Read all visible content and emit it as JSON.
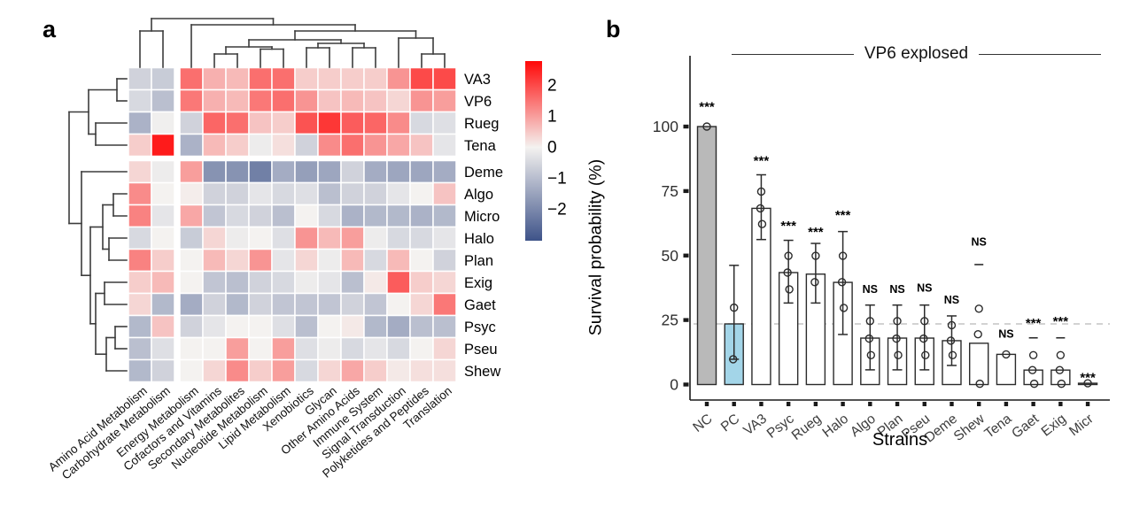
{
  "figure": {
    "panels": [
      {
        "label": "a"
      },
      {
        "label": "b"
      }
    ]
  },
  "chart_data": [
    {
      "type": "heatmap",
      "panel": "a",
      "rows": [
        "VA3",
        "VP6",
        "Rueg",
        "Tena",
        "Deme",
        "Algo",
        "Micro",
        "Halo",
        "Plan",
        "Exig",
        "Gaet",
        "Psyc",
        "Pseu",
        "Shew"
      ],
      "columns": [
        "Amino Acid Metabolism",
        "Carbohydrate Metabolism",
        "Energy Metabolism",
        "Cofactors and Vitamins",
        "Secondary Metabolites",
        "Nucleotide Metabolism",
        "Lipid Metabolism",
        "Xenobiotics",
        "Glycan",
        "Other Amino Acids",
        "Immune System",
        "Signal Transduction",
        "Polyketides and Peptides",
        "Translation"
      ],
      "values": [
        [
          -0.5,
          -0.6,
          1.4,
          0.7,
          0.6,
          1.4,
          1.4,
          0.4,
          0.4,
          0.4,
          0.4,
          1.0,
          1.8,
          1.8
        ],
        [
          -0.4,
          -0.8,
          1.3,
          0.7,
          0.6,
          1.3,
          1.4,
          1.0,
          0.5,
          0.6,
          0.5,
          0.3,
          1.0,
          0.9
        ],
        [
          -1.0,
          -0.05,
          -0.5,
          1.5,
          1.4,
          0.5,
          0.4,
          1.7,
          2.0,
          1.6,
          1.5,
          1.1,
          -0.4,
          -0.3
        ],
        [
          0.4,
          2.3,
          -1.0,
          0.6,
          0.4,
          -0.1,
          0.2,
          -0.5,
          1.1,
          1.4,
          1.0,
          0.8,
          0.5,
          -0.2
        ],
        [
          0.3,
          -0.1,
          0.9,
          -1.5,
          -1.5,
          -1.8,
          -1.1,
          -1.3,
          -1.2,
          -0.5,
          -1.1,
          -1.2,
          -1.2,
          -1.1
        ],
        [
          1.1,
          0.0,
          0.05,
          -0.5,
          -0.5,
          -0.2,
          -0.4,
          -0.3,
          -0.8,
          -0.5,
          -0.5,
          -0.2,
          0.0,
          0.5
        ],
        [
          1.2,
          -0.2,
          0.8,
          -0.7,
          -0.4,
          -0.5,
          -0.8,
          0.0,
          -0.4,
          -1.0,
          -0.9,
          -0.9,
          -1.0,
          -0.9
        ],
        [
          -0.4,
          0.0,
          -0.6,
          0.3,
          -0.1,
          0.0,
          -0.3,
          1.0,
          0.6,
          0.9,
          -0.1,
          -0.4,
          -0.4,
          -0.2
        ],
        [
          1.2,
          0.4,
          0.0,
          0.6,
          0.3,
          1.0,
          -0.2,
          0.3,
          -0.1,
          0.6,
          -0.4,
          0.6,
          0.0,
          -0.5
        ],
        [
          0.4,
          0.6,
          0.0,
          -0.7,
          -0.8,
          -0.5,
          -0.4,
          -0.1,
          -0.2,
          -0.8,
          0.1,
          1.6,
          0.4,
          0.3
        ],
        [
          0.3,
          -0.9,
          -1.1,
          -0.5,
          -0.9,
          -0.5,
          -0.7,
          -0.7,
          -0.7,
          -0.5,
          -0.7,
          0.0,
          0.3,
          1.3
        ],
        [
          -0.9,
          0.5,
          -0.5,
          -0.2,
          0.0,
          0.0,
          -0.3,
          -0.8,
          0.0,
          0.1,
          -0.9,
          -1.1,
          -0.8,
          -0.8
        ],
        [
          -0.8,
          -0.3,
          0.0,
          0.0,
          0.9,
          0.0,
          0.9,
          -0.3,
          -0.1,
          -0.4,
          -0.2,
          -0.4,
          0.0,
          0.3
        ],
        [
          -0.9,
          -0.5,
          0.0,
          0.3,
          1.1,
          0.4,
          0.9,
          -0.4,
          0.3,
          0.8,
          0.4,
          0.1,
          0.2,
          0.2
        ]
      ],
      "row_gap_after": 4,
      "col_gap_after": 2,
      "colorbar": {
        "tick_labels": [
          "2",
          "1",
          "0",
          "−1",
          "−2"
        ],
        "tick_values": [
          2,
          1,
          0,
          -1,
          -2
        ],
        "vmax": 2.5,
        "colors": {
          "high": "#ff0808",
          "mid": "#f4f2f0",
          "low": "#3e5389"
        }
      },
      "dendrogram_col_segments": [
        [
          158,
          76,
          158,
          35
        ],
        [
          184,
          76,
          184,
          35
        ],
        [
          158,
          35,
          184,
          35
        ],
        [
          171,
          35,
          171,
          21
        ],
        [
          171,
          21,
          308.5,
          21
        ],
        [
          308.5,
          21,
          308.5,
          28
        ],
        [
          216,
          76,
          216,
          28
        ],
        [
          216,
          28,
          401,
          28
        ],
        [
          401,
          28,
          401,
          35
        ],
        [
          333,
          35,
          469.5,
          35
        ],
        [
          333,
          35,
          333,
          45
        ],
        [
          469.5,
          35,
          469.5,
          43
        ],
        [
          281,
          45,
          385,
          45
        ],
        [
          281,
          45,
          281,
          53
        ],
        [
          385,
          45,
          385,
          49
        ],
        [
          255,
          53,
          307,
          53
        ],
        [
          255,
          53,
          255,
          61
        ],
        [
          307,
          53,
          307,
          55.5
        ],
        [
          242,
          61,
          268,
          61
        ],
        [
          242,
          61,
          242,
          76
        ],
        [
          268,
          61,
          268,
          76
        ],
        [
          294,
          55.5,
          320,
          55.5
        ],
        [
          294,
          55.5,
          294,
          76
        ],
        [
          320,
          55.5,
          320,
          76
        ],
        [
          359,
          49,
          411,
          49
        ],
        [
          359,
          49,
          359,
          54
        ],
        [
          411,
          49,
          411,
          54
        ],
        [
          346,
          54,
          372,
          54
        ],
        [
          346,
          54,
          346,
          76
        ],
        [
          372,
          54,
          372,
          76
        ],
        [
          398,
          54,
          424,
          54
        ],
        [
          398,
          54,
          398,
          76
        ],
        [
          424,
          54,
          424,
          76
        ],
        [
          450,
          43,
          489,
          43
        ],
        [
          450,
          43,
          450,
          76
        ],
        [
          489,
          43,
          489,
          61
        ],
        [
          476,
          61,
          502,
          61
        ],
        [
          476,
          61,
          476,
          76
        ],
        [
          502,
          61,
          502,
          76
        ]
      ],
      "dendrogram_row_segments": [
        [
          132,
          89,
          143,
          89
        ],
        [
          132,
          114,
          143,
          114
        ],
        [
          132,
          89,
          132,
          114
        ],
        [
          100,
          101.5,
          132,
          101.5
        ],
        [
          108,
          139,
          143,
          139
        ],
        [
          108,
          164,
          143,
          164
        ],
        [
          108,
          139,
          108,
          164
        ],
        [
          100,
          151.5,
          108,
          151.5
        ],
        [
          100,
          101.5,
          100,
          151.5
        ],
        [
          78,
          126.5,
          100,
          126.5
        ],
        [
          78,
          126.5,
          78,
          252.5
        ],
        [
          78,
          252.5,
          92,
          252.5
        ],
        [
          92,
          194,
          92,
          311.2
        ],
        [
          92,
          194,
          143,
          194
        ],
        [
          92,
          311.2,
          102,
          311.2
        ],
        [
          102,
          256.5,
          102,
          365.8
        ],
        [
          102,
          256.5,
          116,
          256.5
        ],
        [
          116,
          231.5,
          116,
          281.5
        ],
        [
          116,
          231.5,
          128,
          231.5
        ],
        [
          128,
          219,
          128,
          244
        ],
        [
          128,
          219,
          143,
          219
        ],
        [
          128,
          244,
          143,
          244
        ],
        [
          116,
          281.5,
          123,
          281.5
        ],
        [
          123,
          269,
          123,
          294
        ],
        [
          123,
          269,
          143,
          269
        ],
        [
          123,
          294,
          143,
          294
        ],
        [
          102,
          365.8,
          108,
          365.8
        ],
        [
          108,
          331.5,
          108,
          400.2
        ],
        [
          108,
          331.5,
          118,
          331.5
        ],
        [
          118,
          319,
          118,
          344
        ],
        [
          118,
          319,
          143,
          319
        ],
        [
          118,
          344,
          143,
          344
        ],
        [
          108,
          400.2,
          120,
          400.2
        ],
        [
          120,
          381.5,
          120,
          419
        ],
        [
          120,
          381.5,
          130,
          381.5
        ],
        [
          130,
          369,
          130,
          394
        ],
        [
          130,
          369,
          143,
          369
        ],
        [
          130,
          394,
          143,
          394
        ],
        [
          120,
          419,
          143,
          419
        ]
      ]
    },
    {
      "type": "bar",
      "panel": "b",
      "title": "VP6 explosed",
      "xlabel": "Strains",
      "ylabel": "Survival probability (%)",
      "yticks": [
        0,
        25,
        50,
        75,
        100
      ],
      "ylim": [
        0,
        115
      ],
      "grid": false,
      "reference_line_value": 23.5,
      "categories": [
        "NC",
        "PC",
        "VA3",
        "Psyc",
        "Rueg",
        "Halo",
        "Algo",
        "Plan",
        "Pseu",
        "Deme",
        "Shew",
        "Tena",
        "Gaet",
        "Exig",
        "Micr"
      ],
      "bars": [
        {
          "label": "NC",
          "value": 100,
          "fill": "#b9b9b9",
          "err_lo": null,
          "err_hi": null,
          "points": [
            100
          ],
          "sig": "***",
          "sig_value": 109.5,
          "dash_value": null
        },
        {
          "label": "PC",
          "value": 23.5,
          "fill": "#a3d5e8",
          "err_lo": 9.8,
          "err_hi": 46.2,
          "points": [
            29.8,
            9.8
          ],
          "sig": null,
          "sig_value": null,
          "dash_value": null
        },
        {
          "label": "VA3",
          "value": 68.3,
          "fill": "#ffffff",
          "err_lo": 56.2,
          "err_hi": 81.3,
          "points": [
            74.8,
            68.3,
            62.2
          ],
          "sig": "***",
          "sig_value": 88.5,
          "dash_value": null
        },
        {
          "label": "Psyc",
          "value": 43.4,
          "fill": "#ffffff",
          "err_lo": 31.6,
          "err_hi": 55.9,
          "points": [
            49.9,
            43.4,
            36.9
          ],
          "sig": "***",
          "sig_value": 63.3,
          "dash_value": null
        },
        {
          "label": "Rueg",
          "value": 42.8,
          "fill": "#ffffff",
          "err_lo": 31.6,
          "err_hi": 54.7,
          "points": [
            49.9,
            39.7
          ],
          "sig": "***",
          "sig_value": 60.9,
          "dash_value": null
        },
        {
          "label": "Halo",
          "value": 39.6,
          "fill": "#ffffff",
          "err_lo": 19.4,
          "err_hi": 59.3,
          "points": [
            49.9,
            39.7,
            29.7
          ],
          "sig": "***",
          "sig_value": 67.4,
          "dash_value": null
        },
        {
          "label": "Algo",
          "value": 18,
          "fill": "#ffffff",
          "err_lo": 5.7,
          "err_hi": 30.8,
          "points": [
            24.6,
            17.8,
            11.4
          ],
          "sig": "NS",
          "sig_value": 37,
          "dash_value": null
        },
        {
          "label": "Plan",
          "value": 18,
          "fill": "#ffffff",
          "err_lo": 5.7,
          "err_hi": 30.8,
          "points": [
            24.6,
            17.8,
            11.4
          ],
          "sig": "NS",
          "sig_value": 37,
          "dash_value": null
        },
        {
          "label": "Pseu",
          "value": 18,
          "fill": "#ffffff",
          "err_lo": 5.7,
          "err_hi": 30.8,
          "points": [
            24.6,
            17.8,
            11.4
          ],
          "sig": "NS",
          "sig_value": 37.5,
          "dash_value": null
        },
        {
          "label": "Deme",
          "value": 17,
          "fill": "#ffffff",
          "err_lo": 7.4,
          "err_hi": 26.6,
          "points": [
            23,
            17,
            11.4
          ],
          "sig": "NS",
          "sig_value": 33,
          "dash_value": null
        },
        {
          "label": "Shew",
          "value": 16,
          "fill": "#ffffff",
          "err_lo": null,
          "err_hi": null,
          "points": [
            29.4,
            19.5,
            0.3
          ],
          "sig": "NS",
          "sig_value": 55.4,
          "dash_value": 46.5
        },
        {
          "label": "Tena",
          "value": 11.7,
          "fill": "#ffffff",
          "err_lo": null,
          "err_hi": null,
          "points": [
            11.7
          ],
          "sig": "NS",
          "sig_value": 19.8,
          "dash_value": null
        },
        {
          "label": "Gaet",
          "value": 5.6,
          "fill": "#ffffff",
          "err_lo": null,
          "err_hi": null,
          "points": [
            11.4,
            5.6,
            0.3
          ],
          "sig": "***",
          "sig_value": 25.6,
          "dash_value": 18.1
        },
        {
          "label": "Exig",
          "value": 5.6,
          "fill": "#ffffff",
          "err_lo": null,
          "err_hi": null,
          "points": [
            11.4,
            5.6,
            0.3
          ],
          "sig": "***",
          "sig_value": 26.2,
          "dash_value": 18.1
        },
        {
          "label": "Micr",
          "value": 0.5,
          "fill": "#ffffff",
          "err_lo": null,
          "err_hi": null,
          "points": [
            0.5
          ],
          "sig": "***",
          "sig_value": 4.4,
          "dash_value": null
        }
      ]
    }
  ]
}
